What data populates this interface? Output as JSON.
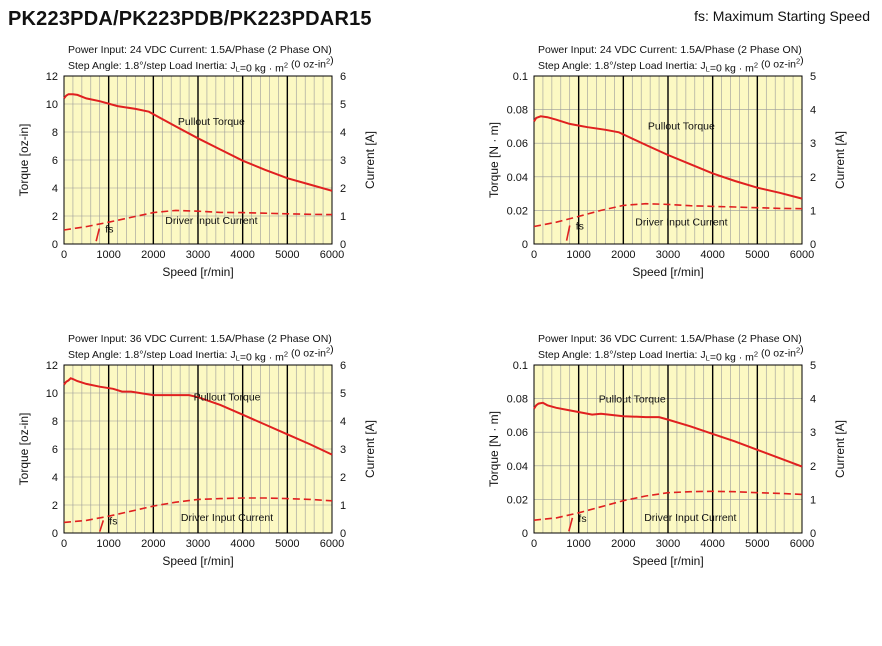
{
  "header": {
    "title": "PK223PDA/PK223PDB/PK223PDAR15",
    "legend_note": "fs: Maximum Starting Speed"
  },
  "colors": {
    "plot_bg": "#fcf9c3",
    "curve": "#e02020",
    "major_grid": "#000000",
    "minor_grid": "#9a9a9a"
  },
  "chart_data": [
    {
      "type": "line",
      "info_line1": "Power Input: 24 VDC  Current: 1.5A/Phase (2 Phase ON)",
      "info_line2": {
        "prefix": "Step Angle: 1.8°/step  Load Inertia: J",
        "sub": "L",
        "mid": "=0 kg · m",
        "sup": "2",
        "tail": " (0 oz-in",
        "sup2": "2",
        "end": ")"
      },
      "xlabel": "Speed [r/min]",
      "ylabel": "Torque [oz-in]",
      "y2label": "Current [A]",
      "xlim": [
        0,
        6000
      ],
      "ylim": [
        0,
        12
      ],
      "y2lim": [
        0,
        6
      ],
      "xticks": [
        "0",
        "1000",
        "2000",
        "3000",
        "4000",
        "5000",
        "6000"
      ],
      "yticks": [
        "0",
        "2",
        "4",
        "6",
        "8",
        "10",
        "12"
      ],
      "y2ticks": [
        "0",
        "1",
        "2",
        "3",
        "4",
        "5",
        "6"
      ],
      "series": [
        {
          "name": "Pullout Torque",
          "axis": "left",
          "x": [
            0,
            50,
            100,
            200,
            300,
            500,
            800,
            1200,
            1600,
            1900,
            2100,
            2500,
            3000,
            3500,
            4000,
            4500,
            5000,
            5500,
            6000
          ],
          "y": [
            10.4,
            10.6,
            10.7,
            10.7,
            10.65,
            10.4,
            10.2,
            9.85,
            9.65,
            9.45,
            9.1,
            8.4,
            7.55,
            6.75,
            5.95,
            5.3,
            4.7,
            4.25,
            3.8
          ]
        },
        {
          "name": "Driver Input Current",
          "axis": "right",
          "x": [
            0,
            500,
            1000,
            1500,
            2000,
            2500,
            3000,
            3500,
            4000,
            4500,
            5000,
            5500,
            6000
          ],
          "y": [
            0.5,
            0.62,
            0.78,
            0.95,
            1.12,
            1.2,
            1.17,
            1.13,
            1.12,
            1.1,
            1.08,
            1.06,
            1.05
          ]
        }
      ],
      "fs_marker": {
        "label": "fs",
        "x": [
          720,
          790
        ],
        "y": [
          0.1,
          0.55
        ]
      },
      "annotations": [
        {
          "text": "Pullout Torque",
          "x": 3300,
          "y": 8.8
        },
        {
          "text": "Driver Input Current",
          "x": 3300,
          "y": 1.7
        }
      ],
      "grid": true
    },
    {
      "type": "line",
      "info_line1": "Power Input: 24 VDC  Current: 1.5A/Phase (2 Phase ON)",
      "info_line2": {
        "prefix": "Step Angle: 1.8°/step  Load Inertia: J",
        "sub": "L",
        "mid": "=0 kg · m",
        "sup": "2",
        "tail": " (0 oz-in",
        "sup2": "2",
        "end": ")"
      },
      "xlabel": "Speed [r/min]",
      "ylabel": "Torque [N · m]",
      "y2label": "Current [A]",
      "xlim": [
        0,
        6000
      ],
      "ylim": [
        0,
        0.1
      ],
      "y2lim": [
        0,
        5
      ],
      "xticks": [
        "0",
        "1000",
        "2000",
        "3000",
        "4000",
        "5000",
        "6000"
      ],
      "yticks": [
        "0",
        "0.02",
        "0.04",
        "0.06",
        "0.08",
        "0.1"
      ],
      "y2ticks": [
        "0",
        "1",
        "2",
        "3",
        "4",
        "5"
      ],
      "series": [
        {
          "name": "Pullout Torque",
          "axis": "left",
          "x": [
            0,
            50,
            150,
            300,
            500,
            800,
            1200,
            1600,
            1900,
            2100,
            2500,
            3000,
            3500,
            4000,
            4500,
            5000,
            5500,
            6000
          ],
          "y": [
            0.073,
            0.075,
            0.076,
            0.0755,
            0.074,
            0.0715,
            0.0695,
            0.068,
            0.0665,
            0.064,
            0.059,
            0.053,
            0.0475,
            0.042,
            0.0375,
            0.0335,
            0.0305,
            0.027
          ]
        },
        {
          "name": "Driver Input Current",
          "axis": "right",
          "x": [
            0,
            500,
            1000,
            1500,
            2000,
            2500,
            3000,
            3500,
            4000,
            4500,
            5000,
            5500,
            6000
          ],
          "y": [
            0.52,
            0.65,
            0.82,
            1.0,
            1.15,
            1.2,
            1.18,
            1.14,
            1.12,
            1.1,
            1.08,
            1.06,
            1.05
          ]
        }
      ],
      "fs_marker": {
        "label": "fs",
        "x": [
          730,
          800
        ],
        "y": [
          0.1,
          0.55
        ]
      },
      "annotations": [
        {
          "text": "Pullout Torque",
          "x": 3300,
          "y": 0.0705
        },
        {
          "text": "Driver Input Current",
          "x": 3300,
          "y": 0.0135
        }
      ],
      "grid": true
    },
    {
      "type": "line",
      "info_line1": "Power Input: 36 VDC  Current: 1.5A/Phase (2 Phase ON)",
      "info_line2": {
        "prefix": "Step Angle: 1.8°/step  Load Inertia: J",
        "sub": "L",
        "mid": "=0 kg · m",
        "sup": "2",
        "tail": " (0 oz-in",
        "sup2": "2",
        "end": ")"
      },
      "xlabel": "Speed [r/min]",
      "ylabel": "Torque [oz-in]",
      "y2label": "Current [A]",
      "xlim": [
        0,
        6000
      ],
      "ylim": [
        0,
        12
      ],
      "y2lim": [
        0,
        6
      ],
      "xticks": [
        "0",
        "1000",
        "2000",
        "3000",
        "4000",
        "5000",
        "6000"
      ],
      "yticks": [
        "0",
        "2",
        "4",
        "6",
        "8",
        "10",
        "12"
      ],
      "y2ticks": [
        "0",
        "1",
        "2",
        "3",
        "4",
        "5",
        "6"
      ],
      "series": [
        {
          "name": "Pullout Torque",
          "axis": "left",
          "x": [
            0,
            50,
            100,
            150,
            200,
            300,
            500,
            800,
            1100,
            1300,
            1500,
            2000,
            2500,
            2800,
            3000,
            3500,
            4000,
            4500,
            5000,
            5500,
            6000
          ],
          "y": [
            10.6,
            10.8,
            10.9,
            11.05,
            11.0,
            10.85,
            10.65,
            10.45,
            10.3,
            10.1,
            10.1,
            9.85,
            9.85,
            9.85,
            9.7,
            9.15,
            8.45,
            7.75,
            7.05,
            6.35,
            5.6
          ]
        },
        {
          "name": "Driver Input Current",
          "axis": "right",
          "x": [
            0,
            500,
            1000,
            1500,
            2000,
            2500,
            3000,
            3500,
            4000,
            4500,
            5000,
            5500,
            6000
          ],
          "y": [
            0.38,
            0.45,
            0.6,
            0.78,
            0.96,
            1.1,
            1.2,
            1.23,
            1.25,
            1.25,
            1.23,
            1.2,
            1.15
          ]
        }
      ],
      "fs_marker": {
        "label": "fs",
        "x": [
          800,
          880
        ],
        "y": [
          0.05,
          0.45
        ]
      },
      "annotations": [
        {
          "text": "Pullout Torque",
          "x": 3650,
          "y": 9.75
        },
        {
          "text": "Driver Input Current",
          "x": 3650,
          "y": 1.15
        }
      ],
      "grid": true
    },
    {
      "type": "line",
      "info_line1": "Power Input: 36 VDC  Current: 1.5A/Phase (2 Phase ON)",
      "info_line2": {
        "prefix": "Step Angle: 1.8°/step  Load Inertia: J",
        "sub": "L",
        "mid": "=0 kg · m",
        "sup": "2",
        "tail": " (0 oz-in",
        "sup2": "2",
        "end": ")"
      },
      "xlabel": "Speed [r/min]",
      "ylabel": "Torque [N · m]",
      "y2label": "Current [A]",
      "xlim": [
        0,
        6000
      ],
      "ylim": [
        0,
        0.1
      ],
      "y2lim": [
        0,
        5
      ],
      "xticks": [
        "0",
        "1000",
        "2000",
        "3000",
        "4000",
        "5000",
        "6000"
      ],
      "yticks": [
        "0",
        "0.02",
        "0.04",
        "0.06",
        "0.08",
        "0.1"
      ],
      "y2ticks": [
        "0",
        "1",
        "2",
        "3",
        "4",
        "5"
      ],
      "series": [
        {
          "name": "Pullout Torque",
          "axis": "left",
          "x": [
            0,
            50,
            100,
            200,
            300,
            500,
            800,
            1100,
            1300,
            1500,
            2000,
            2500,
            2800,
            3000,
            3500,
            4000,
            4500,
            5000,
            5500,
            6000
          ],
          "y": [
            0.074,
            0.076,
            0.077,
            0.0775,
            0.076,
            0.0745,
            0.073,
            0.0715,
            0.0705,
            0.071,
            0.0695,
            0.069,
            0.069,
            0.0675,
            0.0635,
            0.059,
            0.0545,
            0.0495,
            0.0445,
            0.0395
          ]
        },
        {
          "name": "Driver Input Current",
          "axis": "right",
          "x": [
            0,
            500,
            1000,
            1500,
            2000,
            2500,
            3000,
            3500,
            4000,
            4500,
            5000,
            5500,
            6000
          ],
          "y": [
            0.38,
            0.45,
            0.6,
            0.78,
            0.96,
            1.1,
            1.2,
            1.23,
            1.24,
            1.23,
            1.2,
            1.18,
            1.15
          ]
        }
      ],
      "fs_marker": {
        "label": "fs",
        "x": [
          780,
          860
        ],
        "y": [
          0.05,
          0.45
        ]
      },
      "annotations": [
        {
          "text": "Pullout Torque",
          "x": 2200,
          "y": 0.08
        },
        {
          "text": "Driver Input Current",
          "x": 3500,
          "y": 0.0095
        }
      ],
      "grid": true
    }
  ]
}
